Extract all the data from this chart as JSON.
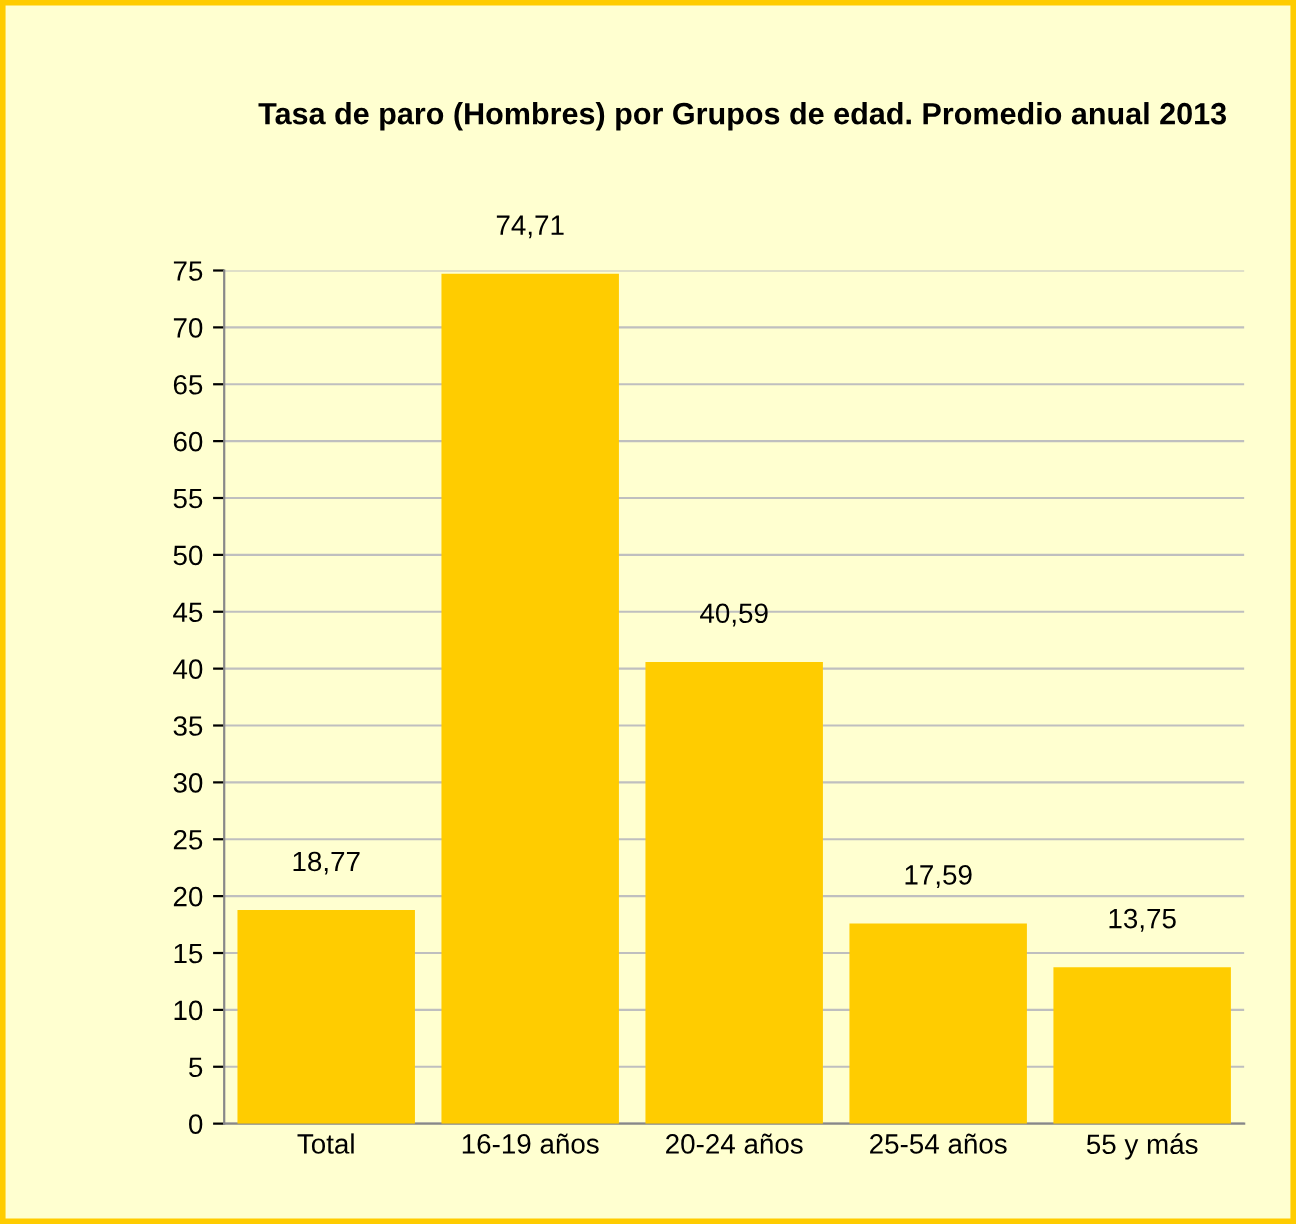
{
  "chart_data": {
    "type": "bar",
    "title": "Tasa de paro (Hombres) por Grupos de edad. Promedio anual 2013",
    "categories": [
      "Total",
      "16-19 años",
      "20-24 años",
      "25-54 años",
      "55 y más"
    ],
    "values": [
      18.77,
      74.71,
      40.59,
      17.59,
      13.75
    ],
    "value_labels": [
      "18,77",
      "74,71",
      "40,59",
      "17,59",
      "13,75"
    ],
    "color": "#ffcc00",
    "ylim": [
      0,
      75
    ],
    "yticks": [
      0,
      5,
      10,
      15,
      20,
      25,
      30,
      35,
      40,
      45,
      50,
      55,
      60,
      65,
      70,
      75
    ],
    "grid": "y",
    "legend": false
  }
}
